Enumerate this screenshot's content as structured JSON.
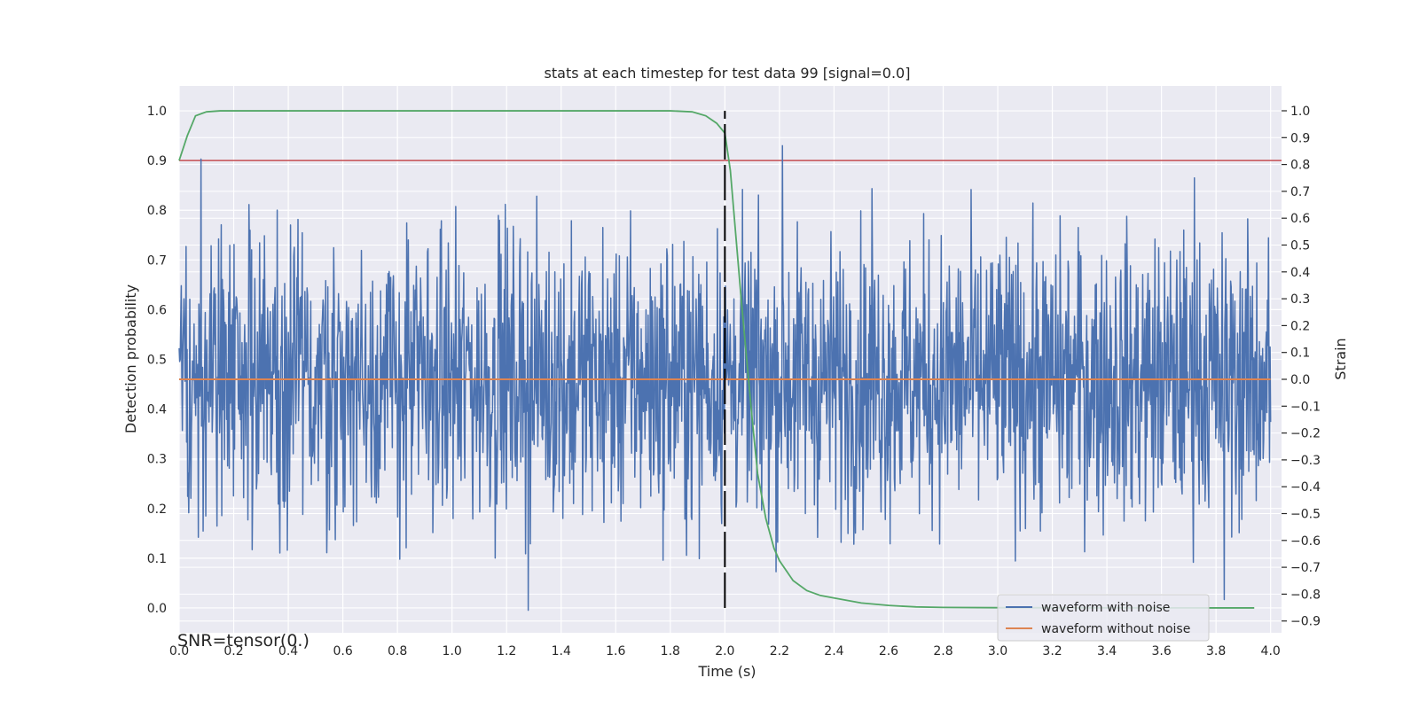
{
  "chart_data": {
    "type": "line",
    "title": "stats at each timestep for test data 99 [signal=0.0]",
    "xlabel": "Time (s)",
    "ylabel": "Detection probability",
    "y2label": "Strain",
    "annotation": "SNR=tensor(0.)",
    "xlim": [
      0.0,
      4.04
    ],
    "ylim": [
      -0.05,
      1.05
    ],
    "y2lim": [
      -0.9,
      1.0
    ],
    "xticks": [
      "0.0",
      "0.2",
      "0.4",
      "0.6",
      "0.8",
      "1.0",
      "1.2",
      "1.4",
      "1.6",
      "1.8",
      "2.0",
      "2.2",
      "2.4",
      "2.6",
      "2.8",
      "3.0",
      "3.2",
      "3.4",
      "3.6",
      "3.8",
      "4.0"
    ],
    "yticks": [
      "0.0",
      "0.1",
      "0.2",
      "0.3",
      "0.4",
      "0.5",
      "0.6",
      "0.7",
      "0.8",
      "0.9",
      "1.0"
    ],
    "y2ticks": [
      "1.0",
      "0.9",
      "0.8",
      "0.7",
      "0.6",
      "0.5",
      "0.4",
      "0.3",
      "0.2",
      "0.1",
      "0.0",
      "−0.1",
      "−0.2",
      "−0.3",
      "−0.4",
      "−0.5",
      "−0.6",
      "−0.7",
      "−0.8",
      "−0.9"
    ],
    "grid": true,
    "legend_position": "bottom-right",
    "legend": [
      "waveform with noise",
      "waveform without noise"
    ],
    "colors": {
      "noise": "#4c72b0",
      "clean": "#dd8452",
      "probability": "#55a868",
      "threshold": "#c44e52",
      "marker": "#000000",
      "background": "#eaeaf2",
      "grid": "#ffffff"
    },
    "threshold": 0.9,
    "marker_x": 2.0,
    "marker_range": [
      0.0,
      1.0
    ],
    "noise_waveform": {
      "x_range": [
        0.0,
        4.0
      ],
      "baseline": 0.0,
      "min": -0.86,
      "max": 0.87,
      "peaks": [
        {
          "x": 0.08,
          "y": 0.82
        },
        {
          "x": 0.36,
          "y": 0.63
        },
        {
          "x": 1.17,
          "y": 0.61
        },
        {
          "x": 1.28,
          "y": -0.86
        },
        {
          "x": 2.21,
          "y": 0.87
        },
        {
          "x": 2.54,
          "y": 0.71
        },
        {
          "x": 3.72,
          "y": 0.75
        },
        {
          "x": 3.83,
          "y": -0.82
        }
      ]
    },
    "clean_waveform": {
      "x": [
        0.0,
        4.0
      ],
      "y": [
        0.0,
        0.0
      ]
    },
    "probability_curve": {
      "x": [
        0.0,
        0.03,
        0.06,
        0.1,
        0.15,
        0.3,
        0.6,
        1.0,
        1.4,
        1.8,
        1.88,
        1.93,
        1.97,
        2.0,
        2.02,
        2.04,
        2.06,
        2.08,
        2.1,
        2.12,
        2.15,
        2.18,
        2.2,
        2.25,
        2.3,
        2.35,
        2.4,
        2.5,
        2.6,
        2.7,
        2.8,
        3.0,
        3.2,
        3.4,
        3.6,
        3.8,
        3.94
      ],
      "y": [
        0.9,
        0.95,
        0.99,
        0.998,
        1.0,
        1.0,
        1.0,
        1.0,
        1.0,
        1.0,
        0.998,
        0.99,
        0.975,
        0.955,
        0.88,
        0.75,
        0.62,
        0.5,
        0.38,
        0.27,
        0.18,
        0.12,
        0.095,
        0.055,
        0.035,
        0.025,
        0.02,
        0.01,
        0.005,
        0.002,
        0.001,
        0.0005,
        0.0003,
        0.0002,
        0.0001,
        0.0,
        0.0
      ]
    }
  }
}
